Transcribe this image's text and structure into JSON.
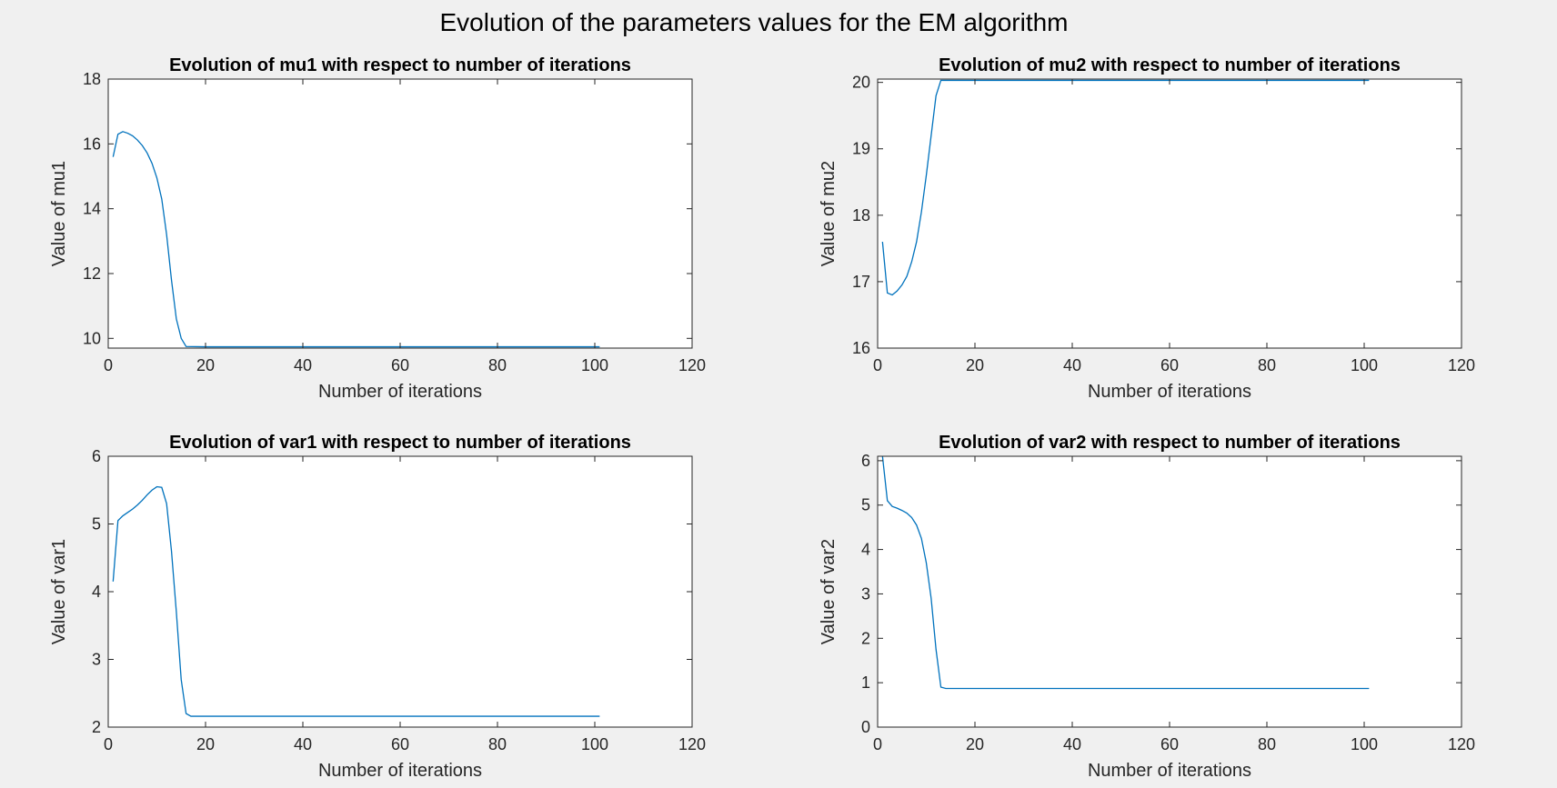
{
  "figure": {
    "title": "Evolution of the parameters values for the EM algorithm",
    "line_color": "#0072bd",
    "background": "#f0f0f0",
    "axes_background": "#ffffff"
  },
  "chart_data": [
    {
      "type": "line",
      "title": "Evolution of mu1 with respect to number of iterations",
      "xlabel": "Number of iterations",
      "ylabel": "Value of mu1",
      "xlim": [
        0,
        120
      ],
      "ylim": [
        9.7,
        18
      ],
      "xticks": [
        0,
        20,
        40,
        60,
        80,
        100,
        120
      ],
      "yticks": [
        10,
        12,
        14,
        16,
        18
      ],
      "grid": false,
      "series": [
        {
          "x": [
            1,
            2,
            3,
            4,
            5,
            6,
            7,
            8,
            9,
            10,
            11,
            12,
            13,
            14,
            15,
            16,
            20,
            40,
            60,
            80,
            101
          ],
          "values": [
            15.6,
            16.3,
            16.38,
            16.33,
            16.25,
            16.12,
            15.95,
            15.72,
            15.4,
            14.95,
            14.3,
            13.2,
            11.8,
            10.6,
            10.0,
            9.75,
            9.74,
            9.74,
            9.74,
            9.74,
            9.74
          ]
        }
      ]
    },
    {
      "type": "line",
      "title": "Evolution of mu2 with respect to number of iterations",
      "xlabel": "Number of iterations",
      "ylabel": "Value of mu2",
      "xlim": [
        0,
        120
      ],
      "ylim": [
        16,
        20.05
      ],
      "xticks": [
        0,
        20,
        40,
        60,
        80,
        100,
        120
      ],
      "yticks": [
        16,
        17,
        18,
        19,
        20
      ],
      "grid": false,
      "series": [
        {
          "x": [
            1,
            2,
            3,
            4,
            5,
            6,
            7,
            8,
            9,
            10,
            11,
            12,
            13,
            14,
            20,
            40,
            60,
            80,
            101
          ],
          "values": [
            17.6,
            16.83,
            16.8,
            16.86,
            16.95,
            17.08,
            17.3,
            17.6,
            18.05,
            18.6,
            19.2,
            19.8,
            20.03,
            20.03,
            20.03,
            20.03,
            20.03,
            20.03,
            20.03
          ]
        }
      ]
    },
    {
      "type": "line",
      "title": "Evolution of var1 with respect to number of iterations",
      "xlabel": "Number of iterations",
      "ylabel": "Value of var1",
      "xlim": [
        0,
        120
      ],
      "ylim": [
        2,
        6
      ],
      "xticks": [
        0,
        20,
        40,
        60,
        80,
        100,
        120
      ],
      "yticks": [
        2,
        3,
        4,
        5,
        6
      ],
      "grid": false,
      "series": [
        {
          "x": [
            1,
            2,
            3,
            4,
            5,
            6,
            7,
            8,
            9,
            10,
            11,
            12,
            13,
            14,
            15,
            16,
            17,
            20,
            40,
            60,
            80,
            101
          ],
          "values": [
            4.15,
            5.05,
            5.12,
            5.17,
            5.22,
            5.28,
            5.35,
            5.43,
            5.5,
            5.55,
            5.54,
            5.3,
            4.6,
            3.7,
            2.7,
            2.2,
            2.16,
            2.16,
            2.16,
            2.16,
            2.16,
            2.16
          ]
        }
      ]
    },
    {
      "type": "line",
      "title": "Evolution of var2 with respect to number of iterations",
      "xlabel": "Number of iterations",
      "ylabel": "Value of var2",
      "xlim": [
        0,
        120
      ],
      "ylim": [
        0,
        6.1
      ],
      "xticks": [
        0,
        20,
        40,
        60,
        80,
        100,
        120
      ],
      "yticks": [
        0,
        1,
        2,
        3,
        4,
        5,
        6
      ],
      "grid": false,
      "series": [
        {
          "x": [
            1,
            2,
            3,
            4,
            5,
            6,
            7,
            8,
            9,
            10,
            11,
            12,
            13,
            14,
            20,
            40,
            60,
            80,
            101
          ],
          "values": [
            6.1,
            5.1,
            4.97,
            4.93,
            4.88,
            4.82,
            4.72,
            4.55,
            4.25,
            3.7,
            2.9,
            1.75,
            0.9,
            0.87,
            0.87,
            0.87,
            0.87,
            0.87,
            0.87
          ]
        }
      ]
    }
  ]
}
